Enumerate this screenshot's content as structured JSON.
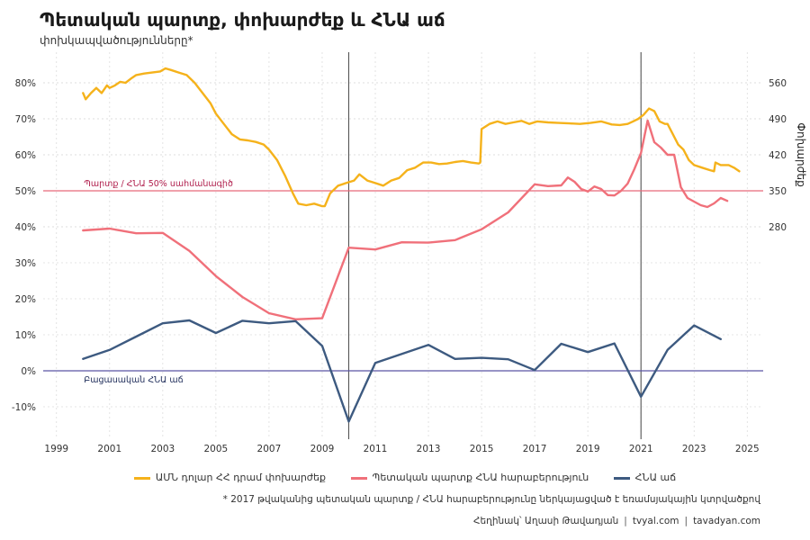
{
  "header": {
    "title": "Պետական պարտք, փոխարժեք և ՀՆԱ աճ",
    "subtitle": "փոխկապվածությունները*"
  },
  "legend": [
    {
      "label": "ԱՄՆ դոլար ՀՀ դրամ փոխարժեք",
      "color": "#f5b21b"
    },
    {
      "label": "Պետական պարտք ՀՆԱ հարաբերություն",
      "color": "#f0707a"
    },
    {
      "label": "ՀՆԱ աճ",
      "color": "#3d5a80"
    }
  ],
  "footer": {
    "note": "* 2017 թվականից պետական պարտք / ՀՆԱ հարաբերությունը ներկայացված է եռամսյակային կտրվածքով",
    "author": "Հեղինակ՝ Աղասի Թավադյան",
    "site1": "tvyal.com",
    "site2": "tavadyan.com",
    "sep": "|"
  },
  "chart_data": {
    "type": "line",
    "title": "Պետական պարտք, փոխարժեք և ՀՆԱ աճ",
    "subtitle": "փոխկապվածությունները*",
    "x_ticks": [
      "1999",
      "2001",
      "2003",
      "2005",
      "2007",
      "2009",
      "2011",
      "2013",
      "2015",
      "2017",
      "2019",
      "2021",
      "2023",
      "2025"
    ],
    "xlim": [
      1998.5,
      2025.6
    ],
    "left_axis": {
      "ylim": [
        -0.19,
        0.885
      ],
      "ticks": [
        "-10%",
        "0%",
        "10%",
        "20%",
        "30%",
        "40%",
        "50%",
        "60%",
        "70%",
        "80%"
      ],
      "tick_values": [
        -0.1,
        0,
        0.1,
        0.2,
        0.3,
        0.4,
        0.5,
        0.6,
        0.7,
        0.8
      ]
    },
    "right_axis": {
      "label": "Փոխարժեք",
      "ticks": [
        "280",
        "350",
        "420",
        "490",
        "560"
      ],
      "tick_values": [
        280,
        350,
        420,
        490,
        560
      ]
    },
    "grid": true,
    "legend_position": "bottom",
    "reference_lines": [
      {
        "label": "Պարտք / ՀՆԱ 50% սահմանագիծ",
        "value": 0.5,
        "color": "#e8697a",
        "text_color": "#b01e4c"
      },
      {
        "label": "Բացասական ՀՆԱ աճ",
        "value": 0.0,
        "color": "#5b55a5",
        "text_color": "#1f2d5a"
      }
    ],
    "vertical_lines": [
      2010.0,
      2021.0
    ],
    "series": [
      {
        "name": "ԱՄՆ դոլար ՀՀ դրամ փոխարժեք",
        "axis": "right",
        "color": "#f5b21b",
        "x": [
          2000.0,
          2000.1,
          2000.3,
          2000.5,
          2000.7,
          2000.9,
          2001.0,
          2001.2,
          2001.4,
          2001.6,
          2001.8,
          2002.0,
          2002.3,
          2002.6,
          2002.9,
          2003.1,
          2003.3,
          2003.6,
          2003.9,
          2004.2,
          2004.5,
          2004.8,
          2005.0,
          2005.3,
          2005.6,
          2005.9,
          2006.2,
          2006.5,
          2006.8,
          2007.0,
          2007.3,
          2007.6,
          2007.9,
          2008.1,
          2008.4,
          2008.7,
          2009.0,
          2009.1,
          2009.3,
          2009.6,
          2009.9,
          2010.2,
          2010.4,
          2010.7,
          2011.0,
          2011.3,
          2011.6,
          2011.9,
          2012.2,
          2012.5,
          2012.8,
          2013.1,
          2013.4,
          2013.7,
          2014.0,
          2014.3,
          2014.6,
          2014.9,
          2014.95,
          2015.0,
          2015.3,
          2015.6,
          2015.9,
          2016.2,
          2016.5,
          2016.8,
          2017.1,
          2017.5,
          2017.9,
          2018.3,
          2018.7,
          2019.1,
          2019.5,
          2019.9,
          2020.2,
          2020.5,
          2020.7,
          2020.9,
          2021.1,
          2021.3,
          2021.5,
          2021.7,
          2021.9,
          2022.0,
          2022.2,
          2022.4,
          2022.6,
          2022.8,
          2023.0,
          2023.3,
          2023.6,
          2023.75,
          2023.8,
          2024.0,
          2024.3,
          2024.5,
          2024.7
        ],
        "y": [
          540,
          528,
          540,
          550,
          540,
          555,
          550,
          555,
          562,
          560,
          568,
          575,
          578,
          580,
          582,
          588,
          585,
          580,
          575,
          560,
          540,
          520,
          500,
          480,
          460,
          450,
          448,
          445,
          440,
          430,
          410,
          380,
          345,
          325,
          322,
          325,
          320,
          320,
          345,
          360,
          365,
          370,
          382,
          370,
          365,
          360,
          370,
          375,
          390,
          395,
          405,
          405,
          402,
          403,
          406,
          408,
          405,
          403,
          405,
          470,
          480,
          485,
          480,
          483,
          486,
          480,
          485,
          483,
          482,
          481,
          480,
          482,
          485,
          479,
          478,
          480,
          485,
          490,
          498,
          510,
          505,
          485,
          480,
          480,
          460,
          440,
          430,
          410,
          400,
          395,
          390,
          388,
          405,
          400,
          400,
          395,
          388
        ]
      },
      {
        "name": "Պետական պարտք ՀՆԱ հարաբերություն",
        "axis": "left",
        "color": "#f0707a",
        "x": [
          2000,
          2001,
          2002,
          2003,
          2004,
          2005,
          2006,
          2007,
          2008,
          2009,
          2010,
          2011,
          2012,
          2013,
          2014,
          2015,
          2016,
          2017,
          2017.5,
          2018,
          2018.25,
          2018.5,
          2018.75,
          2019,
          2019.25,
          2019.5,
          2019.75,
          2020,
          2020.25,
          2020.5,
          2020.75,
          2021,
          2021.25,
          2021.5,
          2021.75,
          2022,
          2022.25,
          2022.5,
          2022.75,
          2023,
          2023.25,
          2023.5,
          2023.75,
          2024,
          2024.25
        ],
        "y": [
          0.39,
          0.395,
          0.382,
          0.383,
          0.333,
          0.263,
          0.205,
          0.16,
          0.143,
          0.146,
          0.342,
          0.337,
          0.357,
          0.356,
          0.363,
          0.393,
          0.44,
          0.518,
          0.513,
          0.515,
          0.537,
          0.525,
          0.505,
          0.498,
          0.512,
          0.505,
          0.488,
          0.487,
          0.5,
          0.52,
          0.56,
          0.605,
          0.695,
          0.635,
          0.62,
          0.6,
          0.6,
          0.51,
          0.48,
          0.47,
          0.46,
          0.455,
          0.465,
          0.48,
          0.472
        ]
      },
      {
        "name": "ՀՆԱ աճ",
        "axis": "left",
        "color": "#3d5a80",
        "x": [
          2000,
          2001,
          2002,
          2003,
          2004,
          2005,
          2006,
          2007,
          2008,
          2009,
          2010,
          2011,
          2012,
          2013,
          2014,
          2015,
          2016,
          2017,
          2018,
          2019,
          2020,
          2021,
          2022,
          2023,
          2024
        ],
        "y": [
          0.033,
          0.058,
          0.095,
          0.132,
          0.14,
          0.105,
          0.139,
          0.132,
          0.138,
          0.069,
          -0.141,
          0.022,
          0.047,
          0.072,
          0.033,
          0.036,
          0.032,
          0.002,
          0.075,
          0.052,
          0.076,
          -0.072,
          0.058,
          0.126,
          0.088
        ]
      }
    ]
  }
}
